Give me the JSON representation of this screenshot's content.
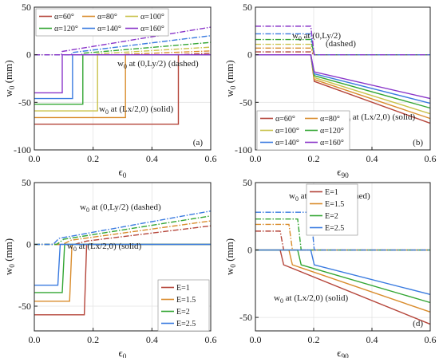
{
  "chart_data": [
    {
      "type": "line",
      "panel_label": "(a)",
      "xlabel": "ϵ0",
      "ylabel": "w0 (mm)",
      "xlim": [
        0.0,
        0.6
      ],
      "ylim": [
        -100,
        50
      ],
      "xticks": [
        "0.0",
        "0.2",
        "0.4",
        "0.6"
      ],
      "yticks": [
        "-100",
        "-50",
        "0",
        "50"
      ],
      "grid": true,
      "legend": {
        "position": "top-left",
        "columns": 3
      },
      "annotations": [
        "w0 at (0,Ly/2) (dashed)",
        "w0 at (Lx/2,0) (solid)"
      ],
      "series": [
        {
          "name": "α=60°",
          "color": "#b5453a",
          "threshold": 0.49,
          "solid_level": -73,
          "dashed_end": 1.5
        },
        {
          "name": "α=80°",
          "color": "#d98c2c",
          "threshold": 0.31,
          "solid_level": -66,
          "dashed_end": 4.0
        },
        {
          "name": "α=100°",
          "color": "#c9c24a",
          "threshold": 0.215,
          "solid_level": -59,
          "dashed_end": 8.0
        },
        {
          "name": "α=120°",
          "color": "#33a633",
          "threshold": 0.165,
          "solid_level": -52,
          "dashed_end": 13.0
        },
        {
          "name": "α=140°",
          "color": "#3a7be0",
          "threshold": 0.13,
          "solid_level": -46,
          "dashed_end": 20.0
        },
        {
          "name": "α=160°",
          "color": "#8a36c9",
          "threshold": 0.095,
          "solid_level": -40,
          "dashed_end": 29.0
        }
      ]
    },
    {
      "type": "line",
      "panel_label": "(b)",
      "xlabel": "ϵ90",
      "ylabel": "w0 (mm)",
      "xlim": [
        0.0,
        0.6
      ],
      "ylim": [
        -100,
        50
      ],
      "xticks": [
        "0.0",
        "0.2",
        "0.4",
        "0.6"
      ],
      "yticks": [
        "-100",
        "-50",
        "0",
        "50"
      ],
      "grid": true,
      "legend": {
        "position": "bottom-left",
        "columns": 2
      },
      "annotations": [
        "w0 at (0,Ly/2)",
        "(dashed)",
        "w0 at (Lx/2,0) (solid)"
      ],
      "threshold": 0.19,
      "series": [
        {
          "name": "α=60°",
          "color": "#b5453a",
          "dashed_level": 3,
          "solid_start": -28,
          "solid_end": -72
        },
        {
          "name": "α=80°",
          "color": "#d98c2c",
          "dashed_level": 7,
          "solid_start": -26,
          "solid_end": -67
        },
        {
          "name": "α=100°",
          "color": "#c9c24a",
          "dashed_level": 11,
          "solid_start": -24,
          "solid_end": -62
        },
        {
          "name": "α=120°",
          "color": "#33a633",
          "dashed_level": 16,
          "solid_start": -22,
          "solid_end": -56
        },
        {
          "name": "α=140°",
          "color": "#3a7be0",
          "dashed_level": 22,
          "solid_start": -20,
          "solid_end": -51
        },
        {
          "name": "α=160°",
          "color": "#8a36c9",
          "dashed_level": 30,
          "solid_start": -18,
          "solid_end": -46
        }
      ]
    },
    {
      "type": "line",
      "panel_label": "(c)",
      "xlabel": "ϵ0",
      "ylabel": "w0 (mm)",
      "xlim": [
        0.0,
        0.6
      ],
      "ylim": [
        -70,
        50
      ],
      "xticks": [
        "0.0",
        "0.2",
        "0.4",
        "0.6"
      ],
      "yticks": [
        "-50",
        "0",
        "50"
      ],
      "grid": true,
      "legend": {
        "position": "bottom-right",
        "columns": 1
      },
      "annotations": [
        "w0 at (0,Ly/2) (dashed)",
        "w0 at (Lx/2,0) (solid)"
      ],
      "series": [
        {
          "name": "E=1",
          "color": "#b5453a",
          "threshold": 0.17,
          "solid_level": -57,
          "dashed_end": 15
        },
        {
          "name": "E=1.5",
          "color": "#d98c2c",
          "threshold": 0.12,
          "solid_level": -46,
          "dashed_end": 19
        },
        {
          "name": "E=2",
          "color": "#33a633",
          "threshold": 0.095,
          "solid_level": -39,
          "dashed_end": 23
        },
        {
          "name": "E=2.5",
          "color": "#3a7be0",
          "threshold": 0.08,
          "solid_level": -33,
          "dashed_end": 27
        }
      ]
    },
    {
      "type": "line",
      "panel_label": "(d)",
      "xlabel": "ϵ90",
      "ylabel": "w0 (mm)",
      "xlim": [
        0.0,
        0.6
      ],
      "ylim": [
        -60,
        50
      ],
      "xticks": [
        "0.0",
        "0.2",
        "0.4",
        "0.6"
      ],
      "yticks": [
        "-50",
        "0",
        "50"
      ],
      "grid": true,
      "legend": {
        "position": "top-left",
        "columns": 1
      },
      "annotations": [
        "w0 at (0,Ly/2) (dashed)",
        "w0 at (Lx/2,0) (solid)"
      ],
      "series": [
        {
          "name": "E=1",
          "color": "#b5453a",
          "threshold": 0.085,
          "dashed_level": 14,
          "solid_start": -11,
          "solid_end": -55
        },
        {
          "name": "E=1.5",
          "color": "#d98c2c",
          "threshold": 0.115,
          "dashed_level": 19,
          "solid_start": -11,
          "solid_end": -46
        },
        {
          "name": "E=2",
          "color": "#33a633",
          "threshold": 0.145,
          "dashed_level": 23,
          "solid_start": -11,
          "solid_end": -39
        },
        {
          "name": "E=2.5",
          "color": "#3a7be0",
          "threshold": 0.19,
          "dashed_level": 28,
          "solid_start": -11,
          "solid_end": -33
        }
      ]
    }
  ]
}
